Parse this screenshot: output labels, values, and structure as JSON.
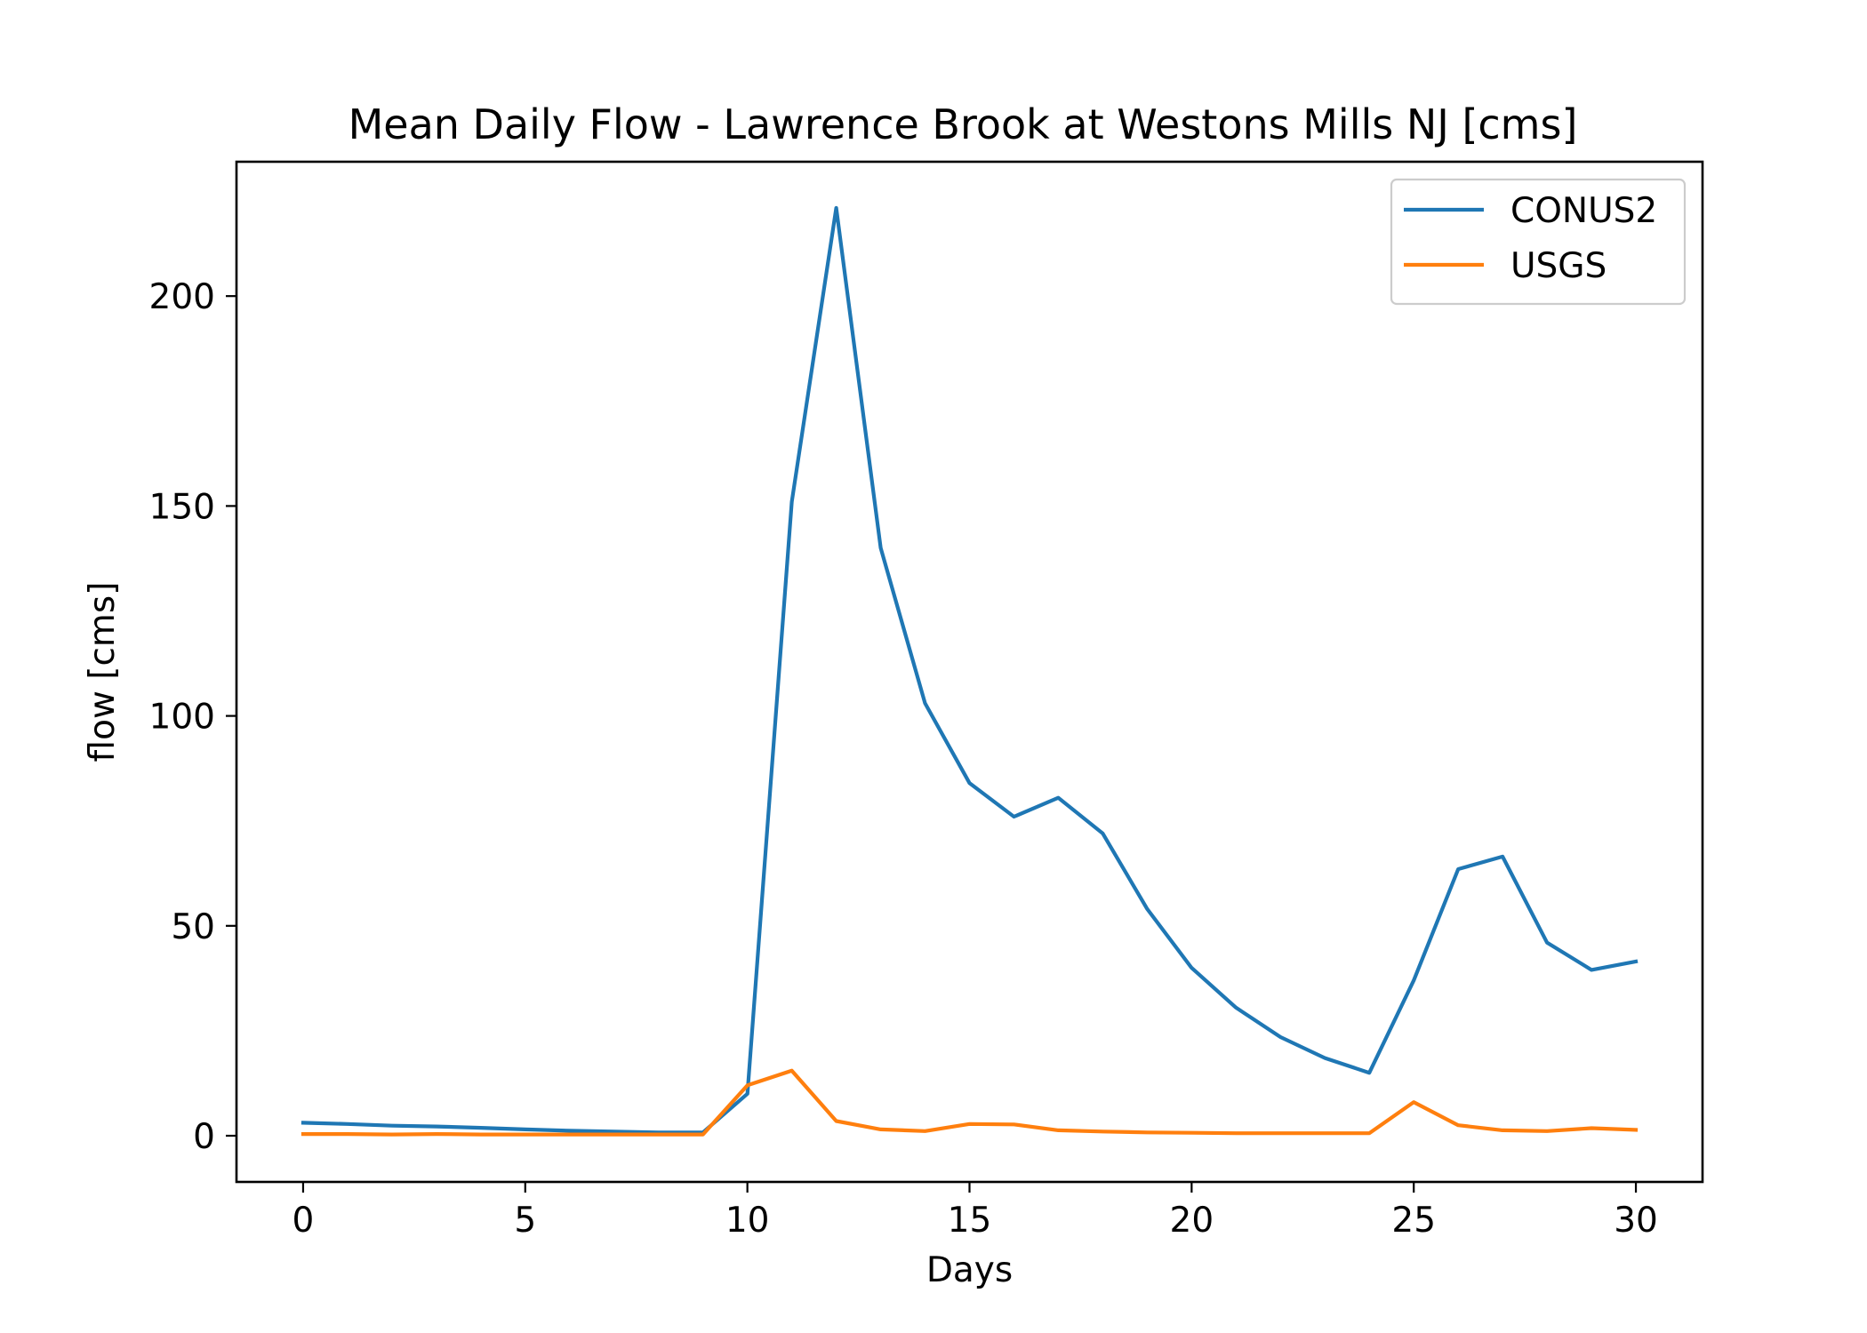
{
  "chart_data": {
    "type": "line",
    "title": "Mean Daily Flow - Lawrence Brook at Westons Mills NJ [cms]",
    "xlabel": "Days",
    "ylabel": "flow [cms]",
    "xlim": [
      -1.5,
      31.5
    ],
    "ylim": [
      -11,
      232
    ],
    "xticks": [
      0,
      5,
      10,
      15,
      20,
      25,
      30
    ],
    "yticks": [
      0,
      50,
      100,
      150,
      200
    ],
    "grid": false,
    "legend_position": "top-right",
    "x": [
      0,
      1,
      2,
      3,
      4,
      5,
      6,
      7,
      8,
      9,
      10,
      11,
      12,
      13,
      14,
      15,
      16,
      17,
      18,
      19,
      20,
      21,
      22,
      23,
      24,
      25,
      26,
      27,
      28,
      29,
      30
    ],
    "series": [
      {
        "name": "CONUS2",
        "color": "#1f77b4",
        "values": [
          3.1,
          2.8,
          2.4,
          2.2,
          1.9,
          1.5,
          1.2,
          1.0,
          0.8,
          0.8,
          10,
          151,
          221,
          140,
          103,
          84,
          76,
          80.5,
          72,
          54,
          40,
          30.5,
          23.5,
          18.5,
          15,
          37,
          63.5,
          66.5,
          46,
          39.5,
          41.5
        ]
      },
      {
        "name": "USGS",
        "color": "#ff7f0e",
        "values": [
          0.4,
          0.4,
          0.3,
          0.4,
          0.3,
          0.3,
          0.3,
          0.3,
          0.3,
          0.3,
          12,
          15.5,
          3.5,
          1.5,
          1.1,
          2.8,
          2.7,
          1.3,
          1.0,
          0.8,
          0.7,
          0.6,
          0.6,
          0.6,
          0.6,
          8,
          2.5,
          1.3,
          1.1,
          1.8,
          1.4
        ]
      }
    ]
  }
}
